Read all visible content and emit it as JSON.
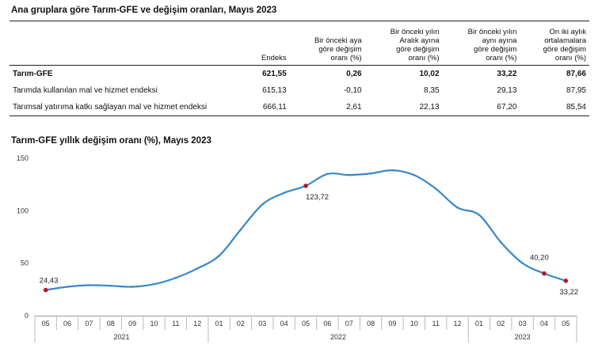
{
  "table": {
    "title": "Ana gruplara göre Tarım-GFE ve değişim oranları, Mayıs 2023",
    "headers": [
      "",
      "Endeks",
      "Bir önceki aya\ngöre değişim\noranı (%)",
      "Bir önceki yılın\nAralık ayına\ngöre değişim\noranı (%)",
      "Bir önceki yılın\naynı ayına\ngöre değişim\noranı (%)",
      "On iki aylık\nortalamalara\ngöre değişim\noranı (%)"
    ],
    "rows": [
      [
        "Tarım-GFE",
        "621,55",
        "0,26",
        "10,02",
        "33,22",
        "87,66"
      ],
      [
        "Tarımda kullanılan mal ve hizmet endeksi",
        "615,13",
        "-0,10",
        "8,35",
        "29,13",
        "87,95"
      ],
      [
        "Tarımsal yatırıma katkı sağlayan mal ve hizmet endeksi",
        "666,11",
        "2,61",
        "22,13",
        "67,20",
        "85,54"
      ]
    ]
  },
  "chart_data": {
    "type": "line",
    "title": "Tarım-GFE yıllık değişim oranı (%), Mayıs 2023",
    "categories": [
      "05",
      "06",
      "07",
      "08",
      "09",
      "10",
      "11",
      "12",
      "01",
      "02",
      "03",
      "04",
      "05",
      "06",
      "07",
      "08",
      "09",
      "10",
      "11",
      "12",
      "01",
      "02",
      "03",
      "04",
      "05"
    ],
    "year_groups": [
      {
        "label": "2021",
        "start": 0,
        "end": 7
      },
      {
        "label": "2022",
        "start": 8,
        "end": 19
      },
      {
        "label": "2023",
        "start": 20,
        "end": 24
      }
    ],
    "values": [
      24.43,
      27.5,
      29.0,
      28.5,
      27.5,
      30.0,
      36.0,
      45.0,
      57.0,
      82.0,
      106.0,
      117.0,
      123.72,
      135.0,
      134.0,
      135.5,
      138.5,
      134.0,
      121.0,
      103.0,
      96.0,
      70.0,
      50.0,
      40.2,
      33.22
    ],
    "ylim": [
      0,
      150
    ],
    "yticks": [
      0,
      50,
      100,
      150
    ],
    "grid": false,
    "line_color": "#3a87c8",
    "marker_color": "#b5182c",
    "highlight_points": [
      {
        "index": 0,
        "label": "24,43"
      },
      {
        "index": 12,
        "label": "123,72"
      },
      {
        "index": 23,
        "label": "40,20"
      },
      {
        "index": 24,
        "label": "33,22"
      }
    ]
  }
}
